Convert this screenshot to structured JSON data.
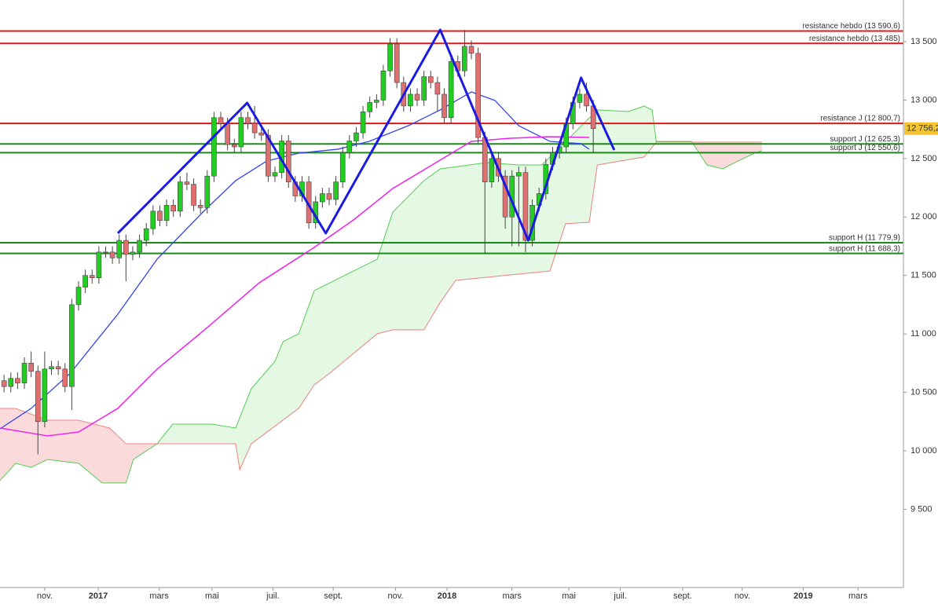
{
  "chart_data": {
    "type": "candlestick",
    "up_color": "#22cc22",
    "down_color": "#e07070",
    "outline_color": "#444444",
    "xlim": [
      0,
      133.4
    ],
    "ylim": [
      8831,
      13856
    ],
    "xticks": [
      {
        "value": 6.6,
        "label": "nov."
      },
      {
        "value": 14.5,
        "label": "2017"
      },
      {
        "value": 23.5,
        "label": "mars"
      },
      {
        "value": 31.3,
        "label": "mai"
      },
      {
        "value": 40.3,
        "label": "juil."
      },
      {
        "value": 49.2,
        "label": "sept."
      },
      {
        "value": 58.4,
        "label": "nov."
      },
      {
        "value": 66.0,
        "label": "2018"
      },
      {
        "value": 75.6,
        "label": "mars"
      },
      {
        "value": 84.0,
        "label": "mai"
      },
      {
        "value": 91.6,
        "label": "juil."
      },
      {
        "value": 100.8,
        "label": "sept."
      },
      {
        "value": 109.6,
        "label": "nov."
      },
      {
        "value": 118.6,
        "label": "2019"
      },
      {
        "value": 126.7,
        "label": "mars"
      }
    ],
    "yticks": [
      {
        "value": 9500,
        "label": "9 500"
      },
      {
        "value": 10000,
        "label": "10 000"
      },
      {
        "value": 10500,
        "label": "10 500"
      },
      {
        "value": 11000,
        "label": "11 000"
      },
      {
        "value": 11500,
        "label": "11 500"
      },
      {
        "value": 12000,
        "label": "12 000"
      },
      {
        "value": 12500,
        "label": "12 500"
      },
      {
        "value": 13000,
        "label": "13 000"
      },
      {
        "value": 13500,
        "label": "13 500"
      }
    ],
    "x": [
      0.6,
      1.6,
      2.6,
      3.6,
      4.6,
      5.6,
      6.6,
      7.6,
      8.6,
      9.6,
      10.6,
      11.6,
      12.6,
      13.6,
      14.6,
      15.6,
      16.6,
      17.6,
      18.6,
      19.6,
      20.6,
      21.6,
      22.6,
      23.6,
      24.6,
      25.6,
      26.6,
      27.6,
      28.6,
      29.6,
      30.6,
      31.6,
      32.6,
      33.6,
      34.6,
      35.6,
      36.6,
      37.6,
      38.6,
      39.6,
      40.6,
      41.6,
      42.6,
      43.6,
      44.6,
      45.6,
      46.6,
      47.6,
      48.6,
      49.6,
      50.6,
      51.6,
      52.6,
      53.6,
      54.6,
      55.6,
      56.6,
      57.6,
      58.6,
      59.6,
      60.6,
      61.6,
      62.6,
      63.6,
      64.6,
      65.6,
      66.6,
      67.6,
      68.6,
      69.6,
      70.6,
      71.6,
      72.6,
      73.6,
      74.6,
      75.6,
      76.6,
      77.6,
      78.6,
      79.6,
      80.6,
      81.6,
      82.6,
      83.6,
      84.6,
      85.6,
      86.6,
      87.6
    ],
    "open": [
      10600,
      10550,
      10620,
      10580,
      10750,
      10680,
      10250,
      10700,
      10720,
      10700,
      10550,
      11250,
      11400,
      11500,
      11480,
      11700,
      11700,
      11650,
      11800,
      11680,
      11700,
      11800,
      11900,
      12050,
      11970,
      12100,
      12050,
      12300,
      12280,
      12100,
      12080,
      12350,
      12850,
      12800,
      12620,
      12600,
      12850,
      12800,
      12720,
      12700,
      12350,
      12380,
      12650,
      12300,
      12180,
      12300,
      11950,
      12130,
      12200,
      12150,
      12300,
      12550,
      12650,
      12720,
      12900,
      12980,
      13000,
      13250,
      13480,
      13150,
      12950,
      13050,
      13000,
      13200,
      13150,
      13050,
      12850,
      13330,
      13250,
      13460,
      13400,
      12680,
      12300,
      12500,
      12350,
      12000,
      12350,
      12380,
      11800,
      12100,
      12200,
      12450,
      12550,
      12600,
      12800,
      12980,
      13050,
      12950
    ],
    "high": [
      10650,
      10670,
      10670,
      10800,
      10850,
      10730,
      10850,
      10770,
      10770,
      10750,
      11300,
      11450,
      11550,
      11550,
      11750,
      11750,
      11750,
      11850,
      11850,
      11750,
      11850,
      11950,
      12100,
      12100,
      12150,
      12150,
      12350,
      12380,
      12330,
      12150,
      12400,
      12900,
      12900,
      12850,
      12670,
      12900,
      12900,
      12950,
      12770,
      12750,
      12430,
      12700,
      12700,
      12350,
      12350,
      12350,
      12180,
      12250,
      12250,
      12350,
      12600,
      12700,
      12770,
      12950,
      13030,
      13050,
      13300,
      13530,
      13530,
      13200,
      13100,
      13100,
      13250,
      13250,
      13200,
      13100,
      13380,
      13380,
      13600,
      13510,
      13450,
      12730,
      12550,
      12550,
      12400,
      12400,
      12430,
      12430,
      12150,
      12250,
      12500,
      12600,
      12650,
      12850,
      13030,
      13100,
      13150,
      13000
    ],
    "low": [
      10500,
      10500,
      10530,
      10530,
      10630,
      9970,
      10200,
      10650,
      10650,
      10500,
      10350,
      11200,
      11350,
      11430,
      11430,
      11650,
      11600,
      11600,
      11450,
      11630,
      11650,
      11750,
      11850,
      11920,
      11920,
      12000,
      12000,
      12230,
      12050,
      12030,
      12030,
      12300,
      12750,
      12570,
      12550,
      12550,
      12750,
      12670,
      12650,
      12300,
      12300,
      12330,
      12250,
      12130,
      12130,
      11900,
      11900,
      12080,
      12100,
      12100,
      12250,
      12500,
      12600,
      12670,
      12850,
      12930,
      12950,
      13200,
      13100,
      12900,
      12900,
      12950,
      12950,
      13100,
      12900,
      12800,
      12800,
      13200,
      13200,
      13350,
      12630,
      11690,
      12250,
      12300,
      11900,
      11750,
      11750,
      11700,
      11750,
      12050,
      12150,
      12400,
      12500,
      12550,
      12750,
      12930,
      12900,
      12550
    ],
    "close": [
      10550,
      10620,
      10580,
      10750,
      10680,
      10250,
      10700,
      10720,
      10700,
      10550,
      11250,
      11400,
      11500,
      11480,
      11700,
      11700,
      11650,
      11800,
      11680,
      11700,
      11800,
      11900,
      12050,
      11970,
      12100,
      12050,
      12300,
      12280,
      12100,
      12080,
      12350,
      12850,
      12800,
      12620,
      12600,
      12850,
      12800,
      12720,
      12700,
      12350,
      12380,
      12650,
      12300,
      12180,
      12300,
      11950,
      12130,
      12200,
      12150,
      12300,
      12550,
      12650,
      12720,
      12900,
      12980,
      13000,
      13250,
      13480,
      13150,
      12950,
      13050,
      13000,
      13200,
      13150,
      13050,
      12850,
      13330,
      13250,
      13460,
      13400,
      12680,
      12300,
      12500,
      12350,
      12000,
      12350,
      12380,
      11800,
      12100,
      12200,
      12450,
      12550,
      12600,
      12800,
      12980,
      13050,
      12950,
      12756.2
    ],
    "last_price": {
      "value": 12756.2,
      "label": "12 756,2",
      "color": "#f4c430"
    },
    "cloud": {
      "fill_up": "#e4f8e4",
      "fill_down": "#fadada",
      "span_a": {
        "color": "#55cc55",
        "x": [
          0,
          2.3,
          4.6,
          7.0,
          11.6,
          15.1,
          18.6,
          19.7,
          23.2,
          25.5,
          31.3,
          34.8,
          37.1,
          40.6,
          41.8,
          44.1,
          46.4,
          52.2,
          55.7,
          58.0,
          62.6,
          65.0,
          71.9,
          76.6,
          80.0,
          82.4,
          88.2,
          92.8,
          95.1,
          96.3,
          96.9,
          102.1,
          104.4,
          106.7,
          109.0,
          111.4,
          112.5
        ],
        "values": [
          9745,
          9893,
          9859,
          9926,
          9893,
          9725,
          9725,
          9926,
          10060,
          10228,
          10228,
          10195,
          10531,
          10766,
          10934,
          11001,
          11370,
          11538,
          11639,
          12042,
          12311,
          12412,
          12465,
          12445,
          12445,
          12580,
          12916,
          12902,
          12949,
          12916,
          12647,
          12647,
          12445,
          12412,
          12479,
          12546,
          12566
        ]
      },
      "span_b": {
        "color": "#f08080",
        "x": [
          0,
          2.3,
          7.0,
          11.6,
          16.2,
          18.6,
          23.2,
          34.8,
          35.4,
          37.1,
          44.1,
          46.4,
          48.7,
          55.7,
          58.0,
          62.6,
          65.0,
          67.3,
          81.2,
          83.5,
          87.0,
          88.2,
          91.6,
          95.1,
          96.9,
          112.5
        ],
        "values": [
          10363,
          10363,
          10262,
          10262,
          10195,
          10060,
          10060,
          10060,
          9839,
          10060,
          10363,
          10564,
          10665,
          11001,
          11035,
          11035,
          11270,
          11458,
          11538,
          11942,
          11955,
          12445,
          12479,
          12513,
          12640,
          12640
        ]
      }
    },
    "lines": [
      {
        "color": "#3344ee",
        "width": 1.3,
        "x": [
          0,
          4.6,
          10.4,
          17.4,
          23.2,
          30.2,
          34.8,
          39.4,
          44.1,
          49.9,
          54.5,
          60.3,
          65.0,
          69.6,
          73.1,
          76.6,
          81.2,
          85.8,
          87.0
        ],
        "values": [
          10188,
          10363,
          10665,
          11169,
          11639,
          12056,
          12311,
          12479,
          12546,
          12580,
          12647,
          12781,
          12916,
          13070,
          12996,
          12781,
          12647,
          12627,
          12580
        ]
      },
      {
        "color": "#ee22ee",
        "width": 1.5,
        "x": [
          0,
          7.0,
          11.6,
          17.4,
          23.2,
          30.2,
          38.3,
          46.4,
          52.2,
          58.0,
          63.8,
          69.6,
          75.4,
          81.2,
          87.0
        ],
        "values": [
          10195,
          10128,
          10161,
          10363,
          10699,
          11035,
          11438,
          11740,
          11975,
          12244,
          12445,
          12647,
          12674,
          12687,
          12680
        ]
      },
      {
        "color": "#1a1ae0",
        "width": 3,
        "x": [
          17.4,
          36.5,
          48.1,
          65.0,
          78.0,
          85.8,
          90.7
        ],
        "values": [
          11861,
          12976,
          11861,
          13601,
          11800,
          13191,
          12573
        ]
      }
    ],
    "levels": [
      {
        "label": "resistance hebdo (13 590,6)",
        "value": 13590.6,
        "color": "#e01818"
      },
      {
        "label": "resistance hebdo (13 485)",
        "value": 13485,
        "color": "#e01818"
      },
      {
        "label": "resistance J (12 800,7)",
        "value": 12800.7,
        "color": "#e01818"
      },
      {
        "label": "support J (12 625,3)",
        "value": 12625.3,
        "color": "#1a8a1a"
      },
      {
        "label": "support J (12 550,6)",
        "value": 12550.6,
        "color": "#1a8a1a"
      },
      {
        "label": "support H (11 779,9)",
        "value": 11779.9,
        "color": "#1a8a1a"
      },
      {
        "label": "support H (11 688,3)",
        "value": 11688.3,
        "color": "#1a8a1a"
      }
    ]
  }
}
